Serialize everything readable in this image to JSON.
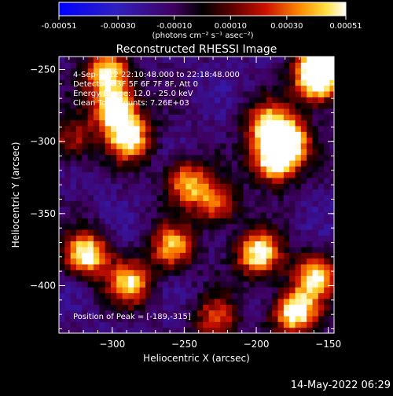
{
  "colorbar": {
    "ticks": [
      "-0.00051",
      "-0.00030",
      "-0.00010",
      "0.00010",
      "0.00030",
      "0.00051"
    ],
    "unit": "(photons cm⁻² s⁻¹ asec⁻²)",
    "range": [
      -0.00051,
      0.00051
    ]
  },
  "chart_data": {
    "type": "heatmap",
    "title": "Reconstructed RHESSI Image",
    "xlabel": "Heliocentric X (arcsec)",
    "ylabel": "Heliocentric Y (arcsec)",
    "xlim": [
      -337,
      -146
    ],
    "ylim": [
      -433,
      -241
    ],
    "x_ticks": [
      -300,
      -250,
      -200,
      -150
    ],
    "y_ticks": [
      -250,
      -300,
      -350,
      -400
    ],
    "x_tick_labels": [
      "−300",
      "−250",
      "−200",
      "−150"
    ],
    "y_tick_labels": [
      "−250",
      "−300",
      "−350",
      "−400"
    ],
    "annotations": [
      "4-Sep-2012 22:10:48.000 to 22:18:48.000",
      "Detectors: 3F 5F 6F 7F 8F, Att 0",
      "Energy Range: 12.0 - 25.0 keV",
      "Clean  Total counts: 7.26E+03"
    ],
    "peak_label": "Position of Peak = [-189,-315]",
    "peak": [
      -189,
      -315
    ],
    "bright_regions": [
      {
        "x": -300,
        "y": -280,
        "level": 0.95
      },
      {
        "x": -290,
        "y": -300,
        "level": 0.8
      },
      {
        "x": -305,
        "y": -255,
        "level": 0.85
      },
      {
        "x": -250,
        "y": -330,
        "level": 0.7
      },
      {
        "x": -230,
        "y": -345,
        "level": 0.6
      },
      {
        "x": -189,
        "y": -315,
        "level": 1.0
      },
      {
        "x": -180,
        "y": -300,
        "level": 0.85
      },
      {
        "x": -160,
        "y": -260,
        "level": 0.95
      },
      {
        "x": -155,
        "y": -245,
        "level": 0.9
      },
      {
        "x": -195,
        "y": -290,
        "level": 0.7
      },
      {
        "x": -320,
        "y": -380,
        "level": 0.9
      },
      {
        "x": -290,
        "y": -400,
        "level": 0.75
      },
      {
        "x": -260,
        "y": -375,
        "level": 0.7
      },
      {
        "x": -200,
        "y": -380,
        "level": 0.9
      },
      {
        "x": -175,
        "y": -420,
        "level": 0.95
      },
      {
        "x": -160,
        "y": -395,
        "level": 0.75
      },
      {
        "x": -230,
        "y": -425,
        "level": 0.55
      },
      {
        "x": -330,
        "y": -300,
        "level": 0.45
      }
    ]
  },
  "footer": {
    "timestamp": "14-May-2022 06:29"
  }
}
